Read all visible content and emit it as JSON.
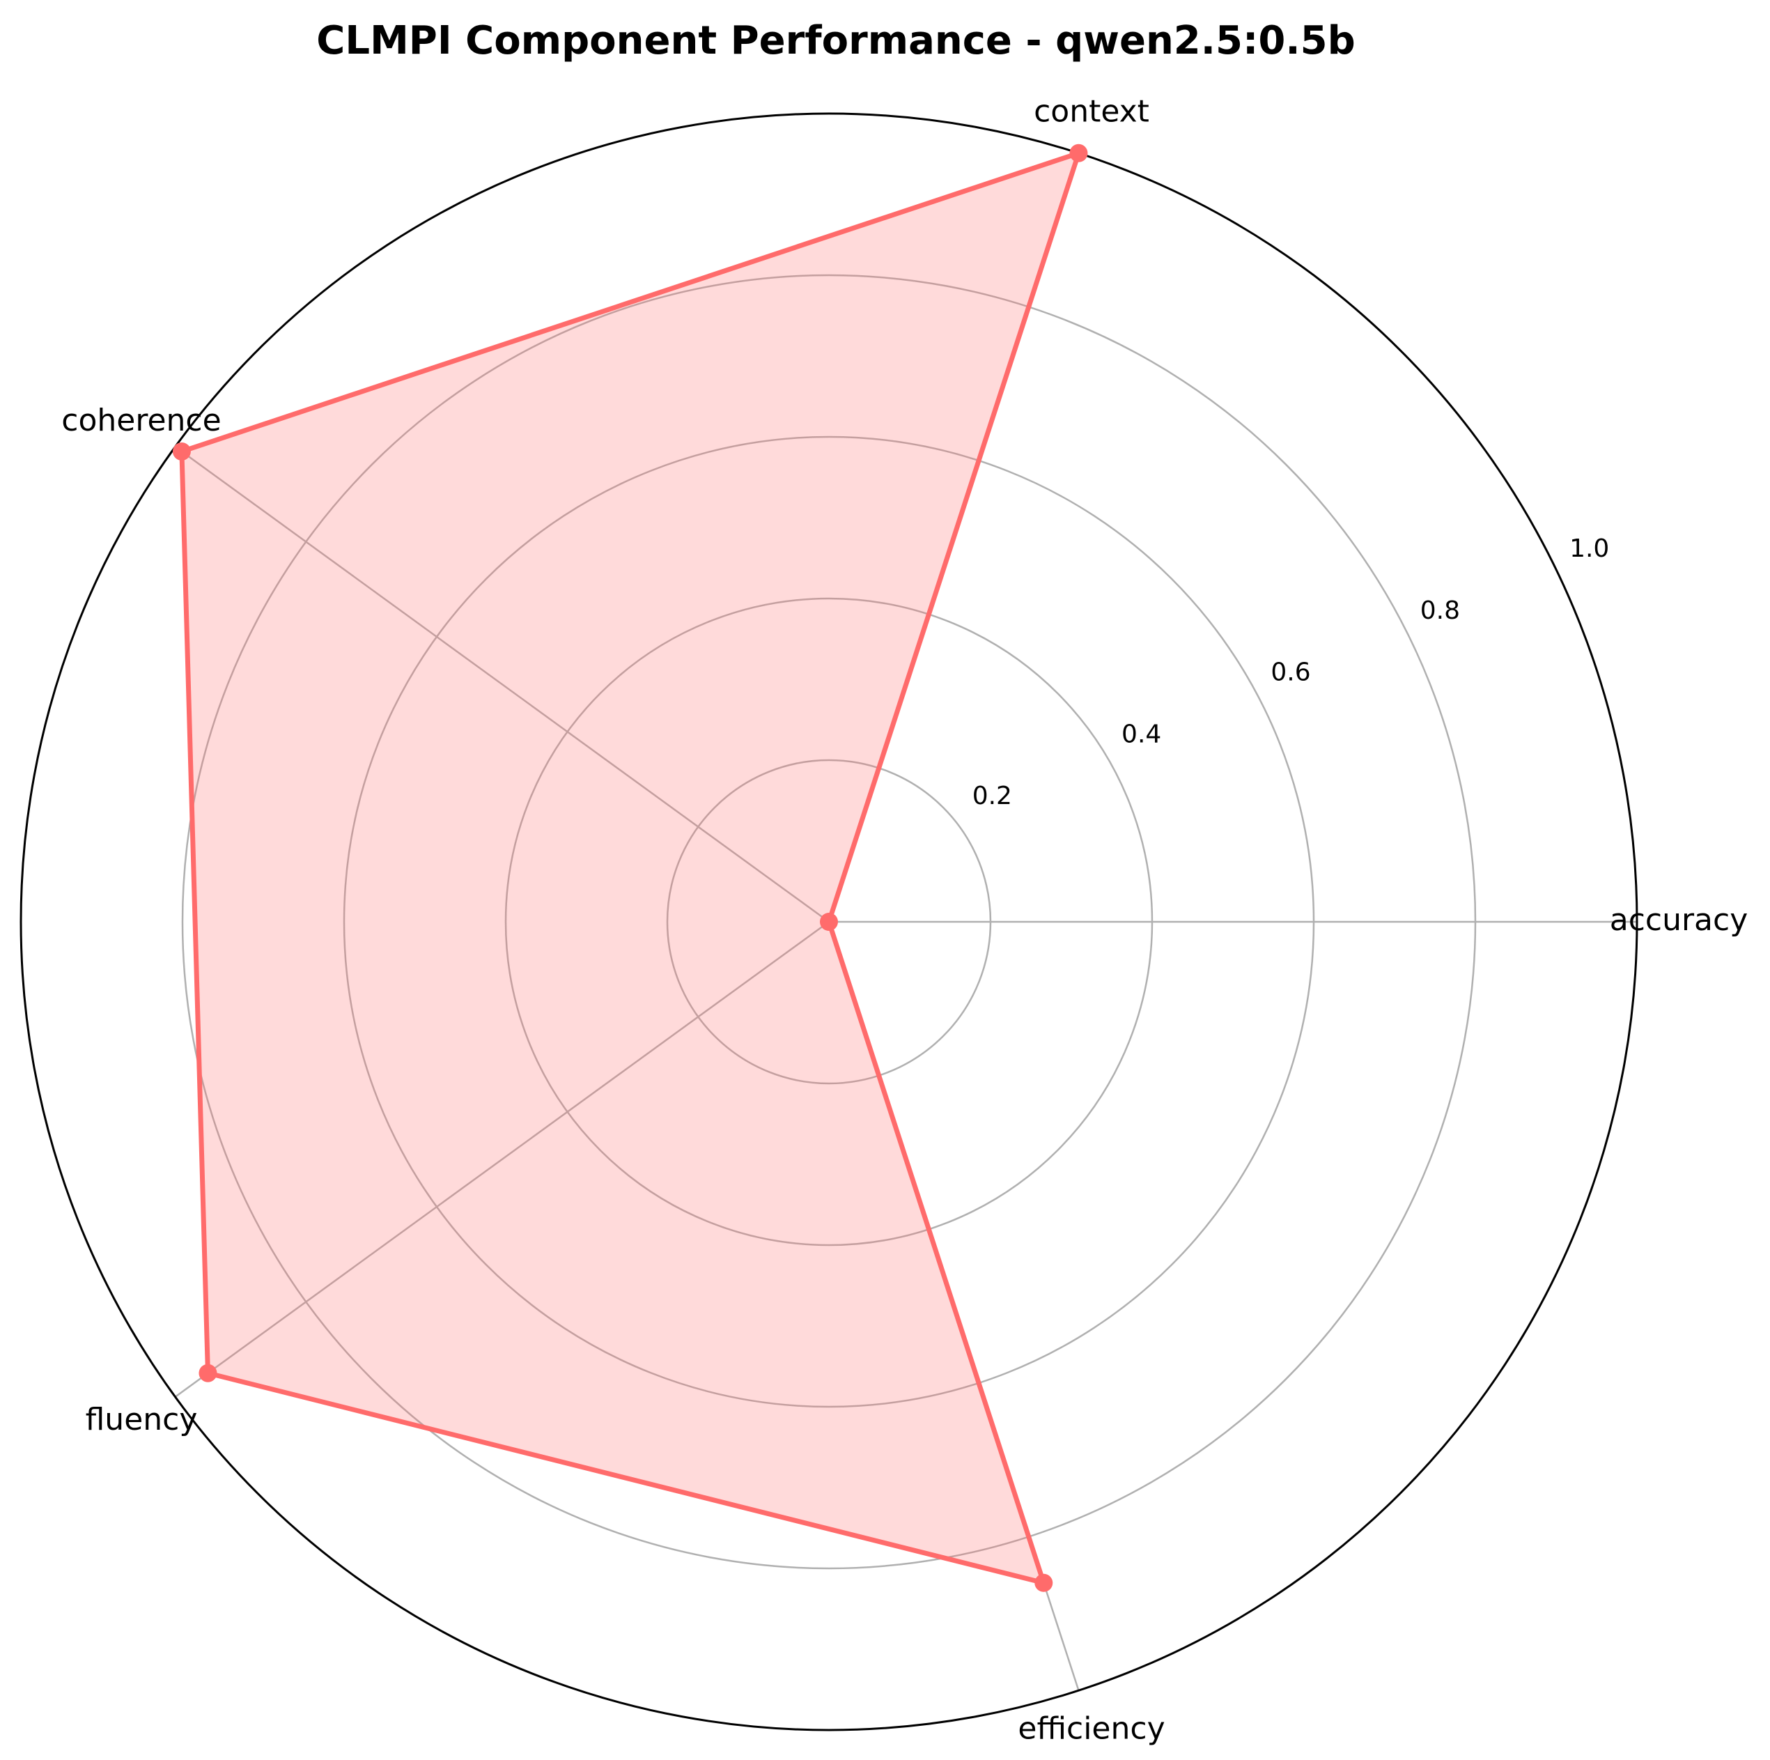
{
  "chart_data": {
    "type": "radar",
    "title": "CLMPI Component Performance - qwen2.5:0.5b",
    "categories": [
      "accuracy",
      "context",
      "coherence",
      "fluency",
      "efficiency"
    ],
    "series": [
      {
        "values": [
          0.0,
          1.0,
          0.99,
          0.95,
          0.86
        ]
      }
    ],
    "rlim": [
      0,
      1.0
    ],
    "rticks": [
      "0.2",
      "0.4",
      "0.6",
      "0.8",
      "1.0"
    ],
    "grid": true,
    "colors": {
      "line": "#ff6b6b",
      "fill": "#ff6b6b",
      "grid": "#b0b0b0",
      "frame": "#000000"
    }
  }
}
